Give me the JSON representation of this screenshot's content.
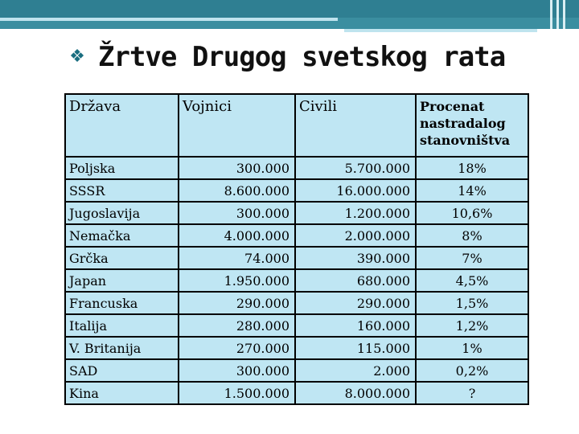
{
  "slide": {
    "bullet_icon": "diamond-bullet-icon",
    "title": "Žrtve Drugog svetskog rata"
  },
  "table": {
    "headers": [
      "Država",
      "Vojnici",
      "Civili",
      "Procenat nastradalog stanovništva"
    ],
    "rows": [
      [
        "Poljska",
        "300.000",
        "5.700.000",
        "18%"
      ],
      [
        "SSSR",
        "8.600.000",
        "16.000.000",
        "14%"
      ],
      [
        "Jugoslavija",
        "300.000",
        "1.200.000",
        "10,6%"
      ],
      [
        "Nemačka",
        "4.000.000",
        "2.000.000",
        "8%"
      ],
      [
        "Grčka",
        "74.000",
        "390.000",
        "7%"
      ],
      [
        "Japan",
        "1.950.000",
        "680.000",
        "4,5%"
      ],
      [
        "Francuska",
        "290.000",
        "290.000",
        "1,5%"
      ],
      [
        "Italija",
        "280.000",
        "160.000",
        "1,2%"
      ],
      [
        "V. Britanija",
        "270.000",
        "115.000",
        "1%"
      ],
      [
        "SAD",
        "300.000",
        "2.000",
        "0,2%"
      ],
      [
        "Kina",
        "1.500.000",
        "8.000.000",
        "?"
      ]
    ]
  },
  "colors": {
    "header_band": "#3b8ea0",
    "table_fill": "#bfe6f3"
  }
}
